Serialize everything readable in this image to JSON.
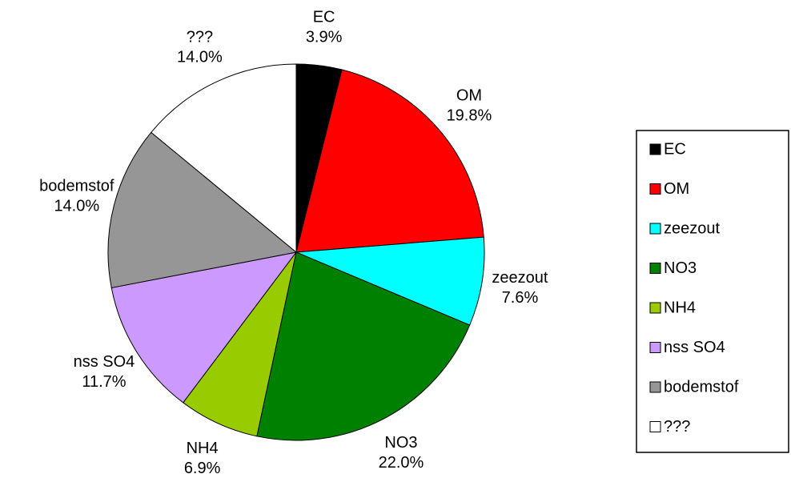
{
  "chart_data": {
    "type": "pie",
    "categories": [
      "EC",
      "OM",
      "zeezout",
      "NO3",
      "NH4",
      "nss SO4",
      "bodemstof",
      "???"
    ],
    "values": [
      3.9,
      19.8,
      7.6,
      22.0,
      6.9,
      11.7,
      14.0,
      14.0
    ],
    "value_labels": [
      "3.9%",
      "19.8%",
      "7.6%",
      "22.0%",
      "6.9%",
      "11.7%",
      "14.0%",
      "14.0%"
    ],
    "colors": [
      "#000000",
      "#ff0000",
      "#00ffff",
      "#008000",
      "#99cc00",
      "#cc99ff",
      "#969696",
      "#ffffff"
    ],
    "legend": "right"
  }
}
